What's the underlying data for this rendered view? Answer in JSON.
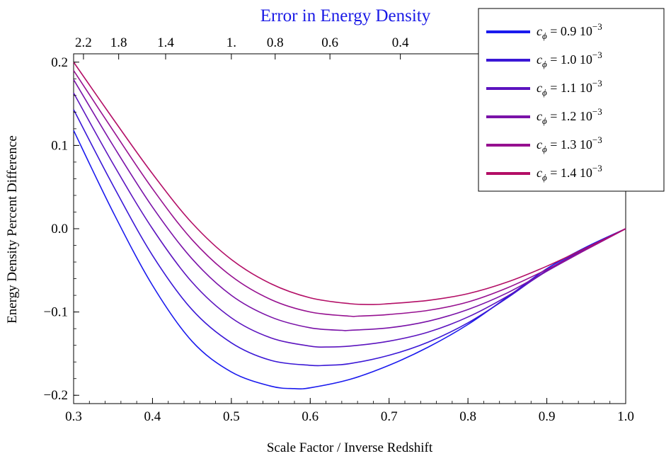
{
  "chart_data": {
    "type": "line",
    "title": "Error in Energy Density",
    "xlabel": "Scale Factor / Inverse Redshift",
    "ylabel": "Energy Density Percent Difference",
    "xlim": [
      0.3,
      1.0
    ],
    "ylim": [
      -0.21,
      0.21
    ],
    "x_ticks": [
      {
        "value": 0.3,
        "label": "0.3"
      },
      {
        "value": 0.4,
        "label": "0.4"
      },
      {
        "value": 0.5,
        "label": "0.5"
      },
      {
        "value": 0.6,
        "label": "0.6"
      },
      {
        "value": 0.7,
        "label": "0.7"
      },
      {
        "value": 0.8,
        "label": "0.8"
      },
      {
        "value": 0.9,
        "label": "0.9"
      },
      {
        "value": 1.0,
        "label": "1.0"
      }
    ],
    "y_ticks": [
      {
        "value": -0.2,
        "label": "−0.2"
      },
      {
        "value": -0.1,
        "label": "−0.1"
      },
      {
        "value": 0.0,
        "label": "0.0"
      },
      {
        "value": 0.1,
        "label": "0.1"
      },
      {
        "value": 0.2,
        "label": "0.2"
      }
    ],
    "top_ticks": [
      {
        "label": "2.2",
        "value": 2.2
      },
      {
        "label": "1.8",
        "value": 1.8
      },
      {
        "label": "1.4",
        "value": 1.4
      },
      {
        "label": "1.",
        "value": 1.0
      },
      {
        "label": "0.8",
        "value": 0.8
      },
      {
        "label": "0.6",
        "value": 0.6
      },
      {
        "label": "0.4",
        "value": 0.4
      }
    ],
    "grid": false,
    "legend_position": "top-right",
    "series": [
      {
        "name": "c_ϕ = 0.9 10^−3",
        "legend_sym": "c",
        "legend_sub": "ϕ",
        "legend_rest": " = 0.9 10",
        "legend_exp": "−3",
        "color": "#1a1aee",
        "points": [
          [
            0.3,
            0.118
          ],
          [
            0.35,
            0.02
          ],
          [
            0.4,
            -0.068
          ],
          [
            0.45,
            -0.135
          ],
          [
            0.5,
            -0.172
          ],
          [
            0.55,
            -0.189
          ],
          [
            0.58,
            -0.192
          ],
          [
            0.6,
            -0.191
          ],
          [
            0.65,
            -0.181
          ],
          [
            0.7,
            -0.164
          ],
          [
            0.75,
            -0.142
          ],
          [
            0.8,
            -0.115
          ],
          [
            0.85,
            -0.082
          ],
          [
            0.9,
            -0.048
          ],
          [
            0.95,
            -0.022
          ],
          [
            1.0,
            0.0
          ]
        ]
      },
      {
        "name": "c_ϕ = 1.0 10^−3",
        "legend_sym": "c",
        "legend_sub": "ϕ",
        "legend_rest": " = 1.0 10",
        "legend_exp": "−3",
        "color": "#3a17d6",
        "points": [
          [
            0.3,
            0.143
          ],
          [
            0.35,
            0.052
          ],
          [
            0.4,
            -0.032
          ],
          [
            0.45,
            -0.097
          ],
          [
            0.5,
            -0.137
          ],
          [
            0.55,
            -0.158
          ],
          [
            0.6,
            -0.164
          ],
          [
            0.62,
            -0.164
          ],
          [
            0.65,
            -0.162
          ],
          [
            0.7,
            -0.152
          ],
          [
            0.75,
            -0.136
          ],
          [
            0.8,
            -0.113
          ],
          [
            0.85,
            -0.083
          ],
          [
            0.9,
            -0.05
          ],
          [
            0.95,
            -0.023
          ],
          [
            1.0,
            0.0
          ]
        ]
      },
      {
        "name": "c_ϕ = 1.1 10^−3",
        "legend_sym": "c",
        "legend_sub": "ϕ",
        "legend_rest": " = 1.1 10",
        "legend_exp": "−3",
        "color": "#5c14bf",
        "points": [
          [
            0.3,
            0.163
          ],
          [
            0.35,
            0.078
          ],
          [
            0.4,
            0.0
          ],
          [
            0.45,
            -0.064
          ],
          [
            0.5,
            -0.107
          ],
          [
            0.55,
            -0.131
          ],
          [
            0.6,
            -0.141
          ],
          [
            0.62,
            -0.142
          ],
          [
            0.65,
            -0.141
          ],
          [
            0.7,
            -0.135
          ],
          [
            0.75,
            -0.124
          ],
          [
            0.8,
            -0.106
          ],
          [
            0.85,
            -0.081
          ],
          [
            0.9,
            -0.051
          ],
          [
            0.95,
            -0.024
          ],
          [
            1.0,
            0.0
          ]
        ]
      },
      {
        "name": "c_ϕ = 1.2 10^−3",
        "legend_sym": "c",
        "legend_sub": "ϕ",
        "legend_rest": " = 1.2 10",
        "legend_exp": "−3",
        "color": "#7a12a8",
        "points": [
          [
            0.3,
            0.179
          ],
          [
            0.35,
            0.1
          ],
          [
            0.4,
            0.026
          ],
          [
            0.45,
            -0.036
          ],
          [
            0.5,
            -0.08
          ],
          [
            0.55,
            -0.106
          ],
          [
            0.6,
            -0.119
          ],
          [
            0.64,
            -0.122
          ],
          [
            0.65,
            -0.122
          ],
          [
            0.7,
            -0.119
          ],
          [
            0.75,
            -0.111
          ],
          [
            0.8,
            -0.097
          ],
          [
            0.85,
            -0.077
          ],
          [
            0.9,
            -0.051
          ],
          [
            0.95,
            -0.025
          ],
          [
            1.0,
            0.0
          ]
        ]
      },
      {
        "name": "c_ϕ = 1.3 10^−3",
        "legend_sym": "c",
        "legend_sub": "ϕ",
        "legend_rest": " = 1.3 10",
        "legend_exp": "−3",
        "color": "#961090",
        "points": [
          [
            0.3,
            0.19
          ],
          [
            0.35,
            0.118
          ],
          [
            0.4,
            0.048
          ],
          [
            0.45,
            -0.013
          ],
          [
            0.5,
            -0.057
          ],
          [
            0.55,
            -0.085
          ],
          [
            0.6,
            -0.1
          ],
          [
            0.65,
            -0.105
          ],
          [
            0.66,
            -0.105
          ],
          [
            0.7,
            -0.103
          ],
          [
            0.75,
            -0.098
          ],
          [
            0.8,
            -0.088
          ],
          [
            0.85,
            -0.071
          ],
          [
            0.9,
            -0.049
          ],
          [
            0.95,
            -0.025
          ],
          [
            1.0,
            0.0
          ]
        ]
      },
      {
        "name": "c_ϕ = 1.4 10^−3",
        "legend_sym": "c",
        "legend_sub": "ϕ",
        "legend_rest": " = 1.4 10",
        "legend_exp": "−3",
        "color": "#b30e66",
        "points": [
          [
            0.3,
            0.2
          ],
          [
            0.35,
            0.132
          ],
          [
            0.4,
            0.066
          ],
          [
            0.45,
            0.007
          ],
          [
            0.5,
            -0.037
          ],
          [
            0.55,
            -0.066
          ],
          [
            0.6,
            -0.083
          ],
          [
            0.65,
            -0.09
          ],
          [
            0.68,
            -0.091
          ],
          [
            0.7,
            -0.09
          ],
          [
            0.75,
            -0.086
          ],
          [
            0.8,
            -0.078
          ],
          [
            0.85,
            -0.064
          ],
          [
            0.9,
            -0.045
          ],
          [
            0.95,
            -0.023
          ],
          [
            1.0,
            0.0
          ]
        ]
      }
    ]
  }
}
